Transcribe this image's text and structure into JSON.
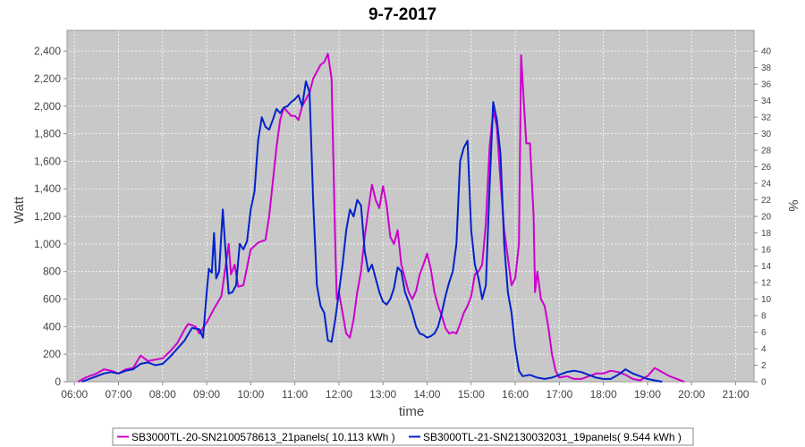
{
  "chart_data": {
    "type": "line",
    "title": "9-7-2017",
    "xlabel": "time",
    "ylabel": "Watt",
    "y2label": "%",
    "xlim": [
      "05:50",
      "21:25"
    ],
    "ylim": [
      0,
      2550
    ],
    "y2lim": [
      0,
      42.5
    ],
    "x_ticks": [
      "06:00",
      "07:00",
      "08:00",
      "09:00",
      "10:00",
      "11:00",
      "12:00",
      "13:00",
      "14:00",
      "15:00",
      "16:00",
      "17:00",
      "18:00",
      "19:00",
      "20:00",
      "21:00"
    ],
    "y_ticks": [
      "0",
      "200",
      "400",
      "600",
      "800",
      "1,000",
      "1,200",
      "1,400",
      "1,600",
      "1,800",
      "2,000",
      "2,200",
      "2,400"
    ],
    "y2_ticks": [
      "0",
      "2",
      "4",
      "6",
      "8",
      "10",
      "12",
      "14",
      "16",
      "18",
      "20",
      "22",
      "24",
      "26",
      "28",
      "30",
      "32",
      "34",
      "36",
      "38",
      "40"
    ],
    "grid": true,
    "legend_position": "bottom",
    "colors": {
      "plot_background": "#c8c8c8",
      "grid": "#ffffff"
    },
    "series": [
      {
        "name": "SB3000TL-20-SN2100578613_21panels( 10.113 kWh )",
        "color": "#cc00cc",
        "points": [
          [
            "06:05",
            0
          ],
          [
            "06:15",
            30
          ],
          [
            "06:30",
            60
          ],
          [
            "06:40",
            90
          ],
          [
            "06:50",
            80
          ],
          [
            "07:00",
            60
          ],
          [
            "07:10",
            90
          ],
          [
            "07:20",
            100
          ],
          [
            "07:30",
            190
          ],
          [
            "07:40",
            150
          ],
          [
            "07:50",
            160
          ],
          [
            "08:00",
            170
          ],
          [
            "08:10",
            220
          ],
          [
            "08:20",
            280
          ],
          [
            "08:30",
            380
          ],
          [
            "08:35",
            420
          ],
          [
            "08:45",
            400
          ],
          [
            "08:50",
            350
          ],
          [
            "09:00",
            430
          ],
          [
            "09:10",
            530
          ],
          [
            "09:20",
            620
          ],
          [
            "09:30",
            1000
          ],
          [
            "09:33",
            780
          ],
          [
            "09:38",
            850
          ],
          [
            "09:43",
            690
          ],
          [
            "09:50",
            700
          ],
          [
            "10:00",
            960
          ],
          [
            "10:10",
            1010
          ],
          [
            "10:20",
            1030
          ],
          [
            "10:25",
            1200
          ],
          [
            "10:30",
            1450
          ],
          [
            "10:35",
            1700
          ],
          [
            "10:40",
            1900
          ],
          [
            "10:45",
            1990
          ],
          [
            "10:50",
            1960
          ],
          [
            "10:55",
            1930
          ],
          [
            "11:00",
            1930
          ],
          [
            "11:05",
            1900
          ],
          [
            "11:10",
            2000
          ],
          [
            "11:15",
            2050
          ],
          [
            "11:20",
            2100
          ],
          [
            "11:25",
            2200
          ],
          [
            "11:30",
            2250
          ],
          [
            "11:35",
            2300
          ],
          [
            "11:40",
            2320
          ],
          [
            "11:45",
            2380
          ],
          [
            "11:50",
            2200
          ],
          [
            "11:55",
            1000
          ],
          [
            "11:57",
            600
          ],
          [
            "12:00",
            650
          ],
          [
            "12:05",
            500
          ],
          [
            "12:10",
            350
          ],
          [
            "12:15",
            320
          ],
          [
            "12:20",
            450
          ],
          [
            "12:25",
            650
          ],
          [
            "12:30",
            800
          ],
          [
            "12:35",
            1050
          ],
          [
            "12:40",
            1250
          ],
          [
            "12:45",
            1430
          ],
          [
            "12:50",
            1320
          ],
          [
            "12:55",
            1260
          ],
          [
            "13:00",
            1420
          ],
          [
            "13:05",
            1280
          ],
          [
            "13:10",
            1050
          ],
          [
            "13:15",
            1000
          ],
          [
            "13:20",
            1100
          ],
          [
            "13:25",
            850
          ],
          [
            "13:30",
            750
          ],
          [
            "13:35",
            650
          ],
          [
            "13:40",
            600
          ],
          [
            "13:45",
            660
          ],
          [
            "13:50",
            780
          ],
          [
            "13:55",
            850
          ],
          [
            "14:00",
            930
          ],
          [
            "14:05",
            820
          ],
          [
            "14:10",
            650
          ],
          [
            "14:15",
            550
          ],
          [
            "14:20",
            480
          ],
          [
            "14:25",
            390
          ],
          [
            "14:30",
            350
          ],
          [
            "14:35",
            360
          ],
          [
            "14:40",
            350
          ],
          [
            "14:45",
            420
          ],
          [
            "14:50",
            500
          ],
          [
            "14:55",
            550
          ],
          [
            "15:00",
            620
          ],
          [
            "15:05",
            780
          ],
          [
            "15:10",
            800
          ],
          [
            "15:15",
            850
          ],
          [
            "15:20",
            1150
          ],
          [
            "15:25",
            1700
          ],
          [
            "15:30",
            1970
          ],
          [
            "15:35",
            1850
          ],
          [
            "15:40",
            1450
          ],
          [
            "15:45",
            1100
          ],
          [
            "15:50",
            900
          ],
          [
            "15:55",
            700
          ],
          [
            "16:00",
            750
          ],
          [
            "16:05",
            1000
          ],
          [
            "16:08",
            2370
          ],
          [
            "16:12",
            2000
          ],
          [
            "16:15",
            1730
          ],
          [
            "16:20",
            1730
          ],
          [
            "16:25",
            1200
          ],
          [
            "16:27",
            650
          ],
          [
            "16:30",
            800
          ],
          [
            "16:35",
            600
          ],
          [
            "16:40",
            550
          ],
          [
            "16:45",
            400
          ],
          [
            "16:50",
            200
          ],
          [
            "16:55",
            80
          ],
          [
            "17:00",
            30
          ],
          [
            "17:10",
            40
          ],
          [
            "17:20",
            20
          ],
          [
            "17:30",
            20
          ],
          [
            "17:40",
            40
          ],
          [
            "17:50",
            60
          ],
          [
            "18:00",
            60
          ],
          [
            "18:10",
            80
          ],
          [
            "18:20",
            70
          ],
          [
            "18:30",
            50
          ],
          [
            "18:40",
            20
          ],
          [
            "18:50",
            10
          ],
          [
            "19:00",
            40
          ],
          [
            "19:10",
            100
          ],
          [
            "19:20",
            70
          ],
          [
            "19:30",
            40
          ],
          [
            "19:40",
            20
          ],
          [
            "19:50",
            0
          ]
        ]
      },
      {
        "name": "SB3000TL-21-SN2130032031_19panels( 9.544 kWh )",
        "color": "#0022cc",
        "points": [
          [
            "06:10",
            0
          ],
          [
            "06:25",
            30
          ],
          [
            "06:40",
            60
          ],
          [
            "06:50",
            70
          ],
          [
            "07:00",
            60
          ],
          [
            "07:10",
            80
          ],
          [
            "07:20",
            90
          ],
          [
            "07:30",
            130
          ],
          [
            "07:40",
            140
          ],
          [
            "07:50",
            120
          ],
          [
            "08:00",
            130
          ],
          [
            "08:10",
            180
          ],
          [
            "08:20",
            240
          ],
          [
            "08:30",
            300
          ],
          [
            "08:40",
            390
          ],
          [
            "08:50",
            380
          ],
          [
            "08:55",
            320
          ],
          [
            "09:00",
            650
          ],
          [
            "09:03",
            820
          ],
          [
            "09:07",
            790
          ],
          [
            "09:10",
            1080
          ],
          [
            "09:13",
            750
          ],
          [
            "09:17",
            800
          ],
          [
            "09:22",
            1250
          ],
          [
            "09:25",
            1000
          ],
          [
            "09:30",
            640
          ],
          [
            "09:35",
            650
          ],
          [
            "09:40",
            700
          ],
          [
            "09:45",
            1000
          ],
          [
            "09:50",
            960
          ],
          [
            "09:55",
            1020
          ],
          [
            "10:00",
            1250
          ],
          [
            "10:05",
            1380
          ],
          [
            "10:10",
            1750
          ],
          [
            "10:15",
            1920
          ],
          [
            "10:20",
            1850
          ],
          [
            "10:25",
            1830
          ],
          [
            "10:30",
            1900
          ],
          [
            "10:35",
            1980
          ],
          [
            "10:40",
            1950
          ],
          [
            "10:45",
            1990
          ],
          [
            "10:50",
            2000
          ],
          [
            "10:55",
            2030
          ],
          [
            "11:00",
            2050
          ],
          [
            "11:05",
            2080
          ],
          [
            "11:10",
            2000
          ],
          [
            "11:15",
            2180
          ],
          [
            "11:20",
            2100
          ],
          [
            "11:25",
            1300
          ],
          [
            "11:30",
            700
          ],
          [
            "11:35",
            550
          ],
          [
            "11:40",
            500
          ],
          [
            "11:45",
            300
          ],
          [
            "11:50",
            290
          ],
          [
            "11:55",
            450
          ],
          [
            "12:00",
            650
          ],
          [
            "12:05",
            850
          ],
          [
            "12:10",
            1100
          ],
          [
            "12:15",
            1250
          ],
          [
            "12:20",
            1200
          ],
          [
            "12:25",
            1320
          ],
          [
            "12:30",
            1280
          ],
          [
            "12:35",
            950
          ],
          [
            "12:40",
            800
          ],
          [
            "12:45",
            850
          ],
          [
            "12:50",
            750
          ],
          [
            "12:55",
            650
          ],
          [
            "13:00",
            580
          ],
          [
            "13:05",
            560
          ],
          [
            "13:10",
            600
          ],
          [
            "13:15",
            680
          ],
          [
            "13:20",
            830
          ],
          [
            "13:25",
            800
          ],
          [
            "13:30",
            650
          ],
          [
            "13:35",
            580
          ],
          [
            "13:40",
            500
          ],
          [
            "13:45",
            400
          ],
          [
            "13:50",
            350
          ],
          [
            "13:55",
            340
          ],
          [
            "14:00",
            320
          ],
          [
            "14:05",
            330
          ],
          [
            "14:10",
            350
          ],
          [
            "14:15",
            400
          ],
          [
            "14:20",
            500
          ],
          [
            "14:25",
            620
          ],
          [
            "14:30",
            720
          ],
          [
            "14:35",
            800
          ],
          [
            "14:40",
            1000
          ],
          [
            "14:45",
            1600
          ],
          [
            "14:50",
            1700
          ],
          [
            "14:55",
            1750
          ],
          [
            "15:00",
            1100
          ],
          [
            "15:05",
            850
          ],
          [
            "15:10",
            750
          ],
          [
            "15:15",
            600
          ],
          [
            "15:20",
            700
          ],
          [
            "15:25",
            1400
          ],
          [
            "15:30",
            2030
          ],
          [
            "15:35",
            1900
          ],
          [
            "15:40",
            1650
          ],
          [
            "15:45",
            1000
          ],
          [
            "15:50",
            650
          ],
          [
            "15:55",
            500
          ],
          [
            "16:00",
            250
          ],
          [
            "16:05",
            80
          ],
          [
            "16:10",
            40
          ],
          [
            "16:20",
            50
          ],
          [
            "16:30",
            30
          ],
          [
            "16:40",
            20
          ],
          [
            "16:50",
            30
          ],
          [
            "17:00",
            50
          ],
          [
            "17:10",
            70
          ],
          [
            "17:20",
            80
          ],
          [
            "17:30",
            70
          ],
          [
            "17:40",
            50
          ],
          [
            "17:50",
            30
          ],
          [
            "18:00",
            20
          ],
          [
            "18:10",
            20
          ],
          [
            "18:20",
            50
          ],
          [
            "18:30",
            90
          ],
          [
            "18:40",
            60
          ],
          [
            "18:50",
            40
          ],
          [
            "19:00",
            20
          ],
          [
            "19:10",
            10
          ],
          [
            "19:20",
            0
          ]
        ]
      }
    ]
  }
}
